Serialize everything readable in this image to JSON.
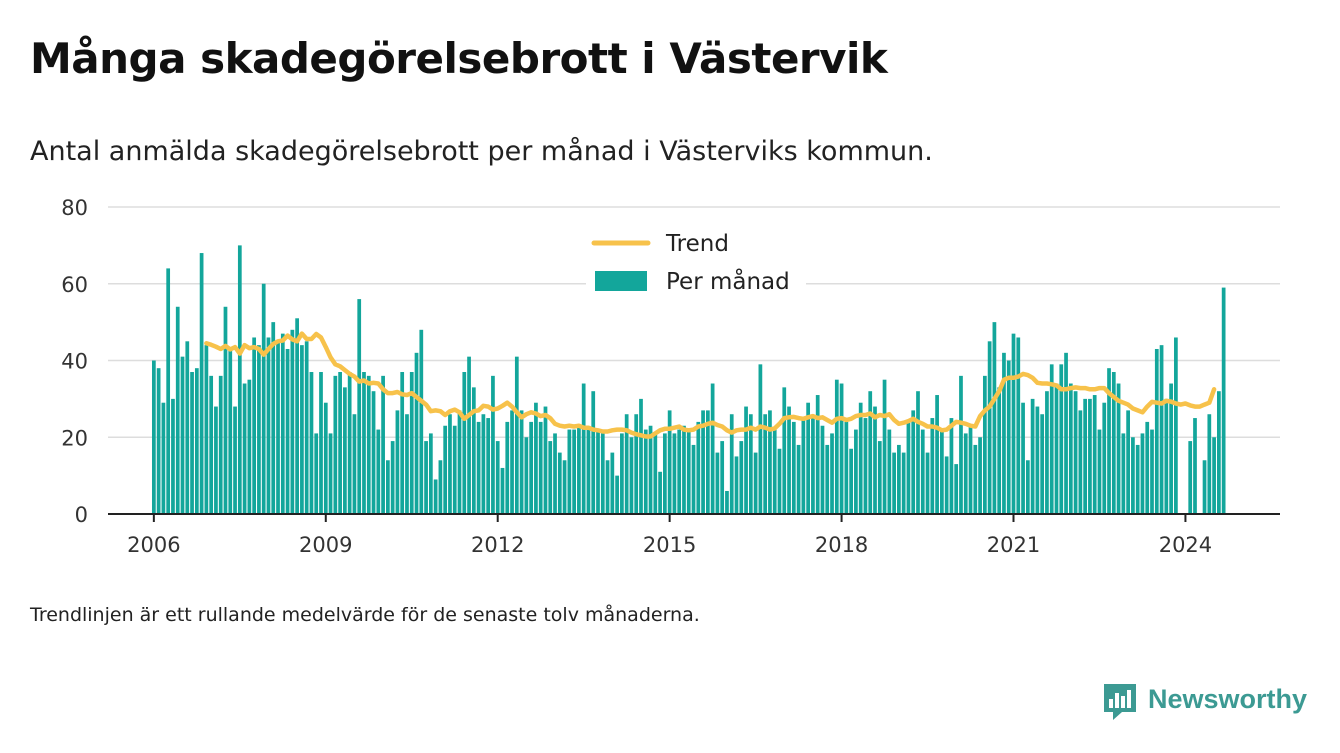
{
  "header": {
    "title": "Många skadegörelsebrott i Västervik",
    "subtitle": "Antal anmälda skadegörelsebrott per månad i Västerviks kommun."
  },
  "footnote": "Trendlinjen är ett rullande medelvärde för de senaste tolv månaderna.",
  "brand": {
    "name": "Newsworthy",
    "color": "#3c9a93",
    "icon": "newsworthy-logo-icon"
  },
  "colors": {
    "bars": "#13a69b",
    "trend": "#f7c24b",
    "grid": "#dddddd",
    "axis": "#222222"
  },
  "chart_data": {
    "type": "bar",
    "title": "Många skadegörelsebrott i Västervik",
    "ylim": [
      0,
      80
    ],
    "yticks": [
      0,
      20,
      40,
      60,
      80
    ],
    "xticks": [
      2006,
      2009,
      2012,
      2015,
      2018,
      2021,
      2024
    ],
    "xlim": [
      2005.2,
      2025.65
    ],
    "grid": true,
    "legend_position": "top-center",
    "x_start": "2006-01",
    "series": [
      {
        "name": "Per månad",
        "kind": "bar",
        "values": [
          40,
          38,
          29,
          64,
          30,
          54,
          41,
          45,
          37,
          38,
          68,
          44,
          36,
          28,
          36,
          54,
          43,
          28,
          70,
          34,
          35,
          46,
          44,
          60,
          46,
          50,
          45,
          47,
          43,
          48,
          51,
          44,
          45,
          37,
          21,
          37,
          29,
          21,
          36,
          37,
          33,
          37,
          26,
          56,
          37,
          36,
          32,
          22,
          36,
          14,
          19,
          27,
          37,
          26,
          37,
          42,
          48,
          19,
          21,
          9,
          14,
          23,
          26,
          23,
          27,
          37,
          41,
          33,
          24,
          26,
          25,
          36,
          19,
          12,
          24,
          27,
          41,
          27,
          20,
          24,
          29,
          24,
          28,
          19,
          21,
          16,
          14,
          22,
          22,
          23,
          34,
          22,
          32,
          22,
          21,
          14,
          16,
          10,
          21,
          26,
          20,
          26,
          30,
          22,
          23,
          21,
          11,
          21,
          27,
          21,
          22,
          23,
          22,
          18,
          24,
          27,
          27,
          34,
          16,
          19,
          6,
          26,
          15,
          19,
          28,
          26,
          16,
          39,
          26,
          27,
          22,
          17,
          33,
          28,
          24,
          18,
          25,
          29,
          25,
          31,
          23,
          18,
          21,
          35,
          34,
          24,
          17,
          22,
          29,
          25,
          32,
          28,
          19,
          35,
          22,
          16,
          18,
          16,
          24,
          27,
          32,
          22,
          16,
          25,
          31,
          22,
          15,
          25,
          13,
          36,
          21,
          23,
          18,
          20,
          36,
          45,
          50,
          33,
          42,
          40,
          47,
          46,
          29,
          14,
          30,
          28,
          26,
          32,
          39,
          34,
          39,
          42,
          34,
          32,
          27,
          30,
          30,
          31,
          22,
          29,
          38,
          37,
          34,
          21,
          27,
          20,
          18,
          21,
          24,
          22,
          43,
          44,
          30,
          34,
          46,
          null,
          null,
          19,
          25,
          null,
          14,
          26,
          20,
          32,
          59
        ]
      },
      {
        "name": "Trend",
        "kind": "line",
        "start_index": 11,
        "values": [
          44.5,
          44.1,
          43.6,
          43.0,
          43.8,
          42.9,
          43.5,
          41.8,
          44.0,
          43.2,
          43.5,
          43.0,
          41.5,
          43.0,
          44.3,
          45.0,
          45.2,
          46.5,
          45.5,
          45.0,
          47.0,
          45.6,
          45.6,
          46.9,
          46.0,
          43.5,
          40.8,
          39.0,
          38.5,
          37.5,
          36.5,
          35.8,
          34.5,
          34.8,
          34.0,
          34.2,
          34.0,
          32.5,
          31.5,
          31.5,
          31.8,
          31.2,
          31.0,
          31.5,
          30.5,
          29.5,
          28.5,
          26.8,
          27.0,
          26.8,
          25.8,
          26.8,
          27.2,
          26.5,
          24.8,
          25.8,
          26.8,
          27.0,
          28.2,
          28.0,
          27.2,
          27.5,
          28.2,
          29.0,
          28.0,
          26.5,
          25.2,
          26.0,
          26.5,
          26.2,
          25.5,
          25.8,
          25.0,
          23.5,
          23.0,
          22.8,
          23.0,
          22.8,
          23.0,
          22.5,
          22.5,
          22.0,
          21.8,
          21.5,
          21.5,
          21.8,
          22.0,
          22.0,
          21.8,
          21.2,
          20.8,
          20.5,
          20.2,
          20.2,
          21.0,
          21.8,
          22.2,
          22.2,
          22.5,
          22.8,
          22.0,
          21.8,
          22.0,
          22.8,
          23.0,
          23.5,
          23.8,
          23.2,
          22.8,
          21.8,
          21.2,
          21.8,
          22.0,
          22.0,
          22.5,
          22.0,
          22.8,
          22.5,
          22.0,
          22.3,
          23.5,
          25.0,
          25.2,
          25.3,
          25.0,
          24.8,
          25.2,
          25.5,
          25.0,
          25.2,
          24.5,
          23.8,
          24.8,
          25.0,
          24.5,
          24.8,
          25.5,
          25.8,
          25.8,
          26.2,
          25.2,
          25.8,
          25.5,
          26.0,
          24.5,
          23.5,
          23.8,
          24.2,
          24.8,
          24.0,
          23.5,
          22.8,
          22.8,
          22.5,
          21.8,
          22.0,
          23.0,
          24.0,
          23.8,
          23.5,
          23.0,
          22.8,
          25.5,
          27.0,
          28.0,
          30.0,
          32.0,
          35.0,
          35.5,
          35.5,
          35.8,
          36.5,
          36.2,
          35.5,
          34.2,
          34.0,
          34.0,
          33.8,
          33.5,
          32.5,
          32.5,
          32.8,
          33.0,
          32.8,
          32.8,
          32.5,
          32.5,
          32.8,
          32.8,
          31.5,
          30.5,
          29.5,
          29.0,
          28.5,
          27.5,
          27.0,
          26.5,
          28.0,
          29.2,
          29.0,
          28.8,
          29.5,
          29.3,
          28.8,
          28.5,
          28.8,
          28.3,
          28.0,
          28.0,
          28.5,
          29.0,
          32.5
        ]
      }
    ]
  }
}
